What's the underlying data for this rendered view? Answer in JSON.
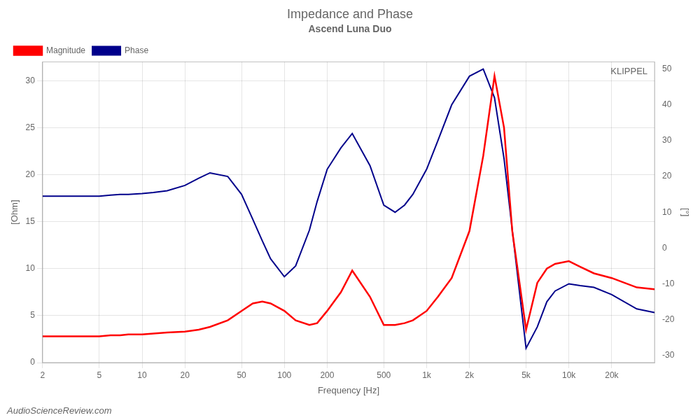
{
  "chart_data": {
    "type": "line",
    "title": "Impedance and Phase",
    "subtitle": "Ascend Luna Duo",
    "xlabel": "Frequency [Hz]",
    "ylabel": "[Ohm]",
    "y2label": "[°]",
    "annotations": [
      "KLIPPEL",
      "AudioScienceReview.com"
    ],
    "log": "x",
    "grid": true,
    "legend": "upper left",
    "xlim": [
      2,
      40000
    ],
    "xticks": [
      2,
      5,
      10,
      20,
      50,
      100,
      200,
      500,
      {
        "value": 1000,
        "label": "1k"
      },
      {
        "value": 2000,
        "label": "2k"
      },
      {
        "value": 5000,
        "label": "5k"
      },
      {
        "value": 10000,
        "label": "10k"
      },
      {
        "value": 20000,
        "label": "20k"
      }
    ],
    "ylim": [
      0,
      32
    ],
    "yticks": [
      0,
      5,
      10,
      15,
      20,
      25,
      30
    ],
    "y2lim": [
      -32,
      52
    ],
    "y2ticks": [
      -30,
      -20,
      -10,
      0,
      10,
      20,
      30,
      40,
      50
    ],
    "x": [
      2,
      2.5,
      3,
      4,
      5,
      6,
      7,
      8,
      10,
      12,
      15,
      20,
      25,
      30,
      40,
      50,
      60,
      70,
      80,
      100,
      120,
      150,
      170,
      200,
      250,
      300,
      400,
      500,
      600,
      700,
      800,
      1000,
      1200,
      1500,
      2000,
      2500,
      3000,
      3500,
      4000,
      5000,
      6000,
      7000,
      8000,
      10000,
      12000,
      15000,
      20000,
      30000,
      40000
    ],
    "series": [
      {
        "name": "Magnitude",
        "color": "#ff0000",
        "values": [
          2.8,
          2.8,
          2.8,
          2.8,
          2.8,
          2.9,
          2.9,
          3.0,
          3.0,
          3.1,
          3.2,
          3.3,
          3.5,
          3.8,
          4.5,
          5.5,
          6.3,
          6.5,
          6.3,
          5.5,
          4.5,
          4.0,
          4.2,
          5.5,
          7.5,
          9.8,
          7.0,
          4.0,
          4.0,
          4.2,
          4.5,
          5.5,
          7.0,
          9.0,
          14.0,
          22.0,
          30.5,
          25.0,
          14.0,
          3.5,
          8.5,
          10.0,
          10.5,
          10.8,
          10.2,
          9.5,
          9.0,
          8.0,
          7.8
        ]
      },
      {
        "name": "Phase",
        "color": "#00008b",
        "axis": "y2",
        "values": [
          14.5,
          14.5,
          14.5,
          14.5,
          14.5,
          14.8,
          15.0,
          15.0,
          15.2,
          15.5,
          16.0,
          17.5,
          19.5,
          21.0,
          20.0,
          15.0,
          8.0,
          2.0,
          -3.0,
          -8.0,
          -5.0,
          5.0,
          13.0,
          22.0,
          28.0,
          32.0,
          23.0,
          12.0,
          10.0,
          12.0,
          15.0,
          22.0,
          30.0,
          40.0,
          48.0,
          50.0,
          42.0,
          25.0,
          5.0,
          -28.0,
          -22.0,
          -15.0,
          -12.0,
          -10.0,
          -10.5,
          -11.0,
          -13.0,
          -17.0,
          -18.0
        ]
      }
    ]
  }
}
